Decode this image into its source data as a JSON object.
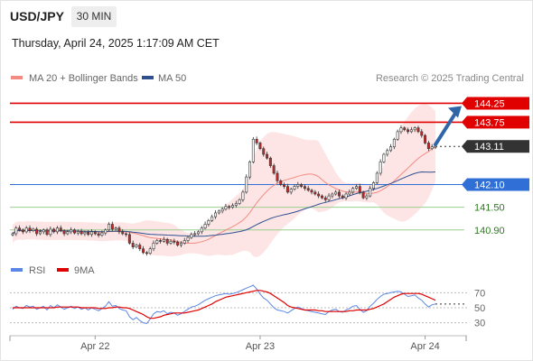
{
  "header": {
    "symbol": "USD/JPY",
    "timeframe": "30 MIN",
    "datetime": "Thursday, April 24, 2025 1:17:09 AM CET"
  },
  "colors": {
    "ma20": "#f28b82",
    "ma50": "#2f4f8f",
    "bollinger_fill": "#fde2e2",
    "resistance": "#e00000",
    "pivot": "#2f6fd6",
    "support": "#9ccf8f",
    "support_text": "#2d7a1f",
    "candle_up": "#ffffff",
    "candle_down": "#c62828",
    "arrow": "#2f66a8",
    "rsi": "#5b86e5",
    "rsi_ma": "#e00000",
    "current": "#333333"
  },
  "chart_data": [
    {
      "type": "line",
      "legend": [
        "MA 20 + Bollinger Bands",
        "MA 50"
      ],
      "legend_position": "top-left",
      "watermark": "Research © 2025 Trading Central",
      "y_range": [
        140.25,
        144.5
      ],
      "x_ticks": [
        {
          "label": "Apr 22",
          "index": 24
        },
        {
          "label": "Apr 23",
          "index": 72
        },
        {
          "label": "Apr 24",
          "index": 120
        }
      ],
      "levels": [
        {
          "value": 144.25,
          "label": "144.25",
          "kind": "resistance"
        },
        {
          "value": 143.75,
          "label": "143.75",
          "kind": "resistance"
        },
        {
          "value": 143.11,
          "label": "143.11",
          "kind": "current"
        },
        {
          "value": 142.1,
          "label": "142.10",
          "kind": "pivot"
        },
        {
          "value": 141.5,
          "label": "141.50",
          "kind": "support"
        },
        {
          "value": 140.9,
          "label": "140.90",
          "kind": "support"
        }
      ],
      "arrow": {
        "from_value": 143.11,
        "to_value": 144.25
      },
      "price_close": [
        140.8,
        140.95,
        140.9,
        140.85,
        140.95,
        140.88,
        140.92,
        140.8,
        140.85,
        140.9,
        140.78,
        140.92,
        140.85,
        140.95,
        140.88,
        140.8,
        140.85,
        140.9,
        140.82,
        140.86,
        140.8,
        140.84,
        140.78,
        140.85,
        140.8,
        140.76,
        140.82,
        140.9,
        141.05,
        140.92,
        140.95,
        140.85,
        140.8,
        140.78,
        140.55,
        140.45,
        140.5,
        140.4,
        140.3,
        140.28,
        140.4,
        140.55,
        140.62,
        140.6,
        140.65,
        140.55,
        140.6,
        140.58,
        140.5,
        140.55,
        140.62,
        140.7,
        140.78,
        140.8,
        140.85,
        140.95,
        141.05,
        141.15,
        141.25,
        141.35,
        141.4,
        141.45,
        141.52,
        141.5,
        141.55,
        141.6,
        141.7,
        141.9,
        142.3,
        142.7,
        143.3,
        143.2,
        143.05,
        142.9,
        142.8,
        142.6,
        142.4,
        142.2,
        142.1,
        142.05,
        141.9,
        141.98,
        142.05,
        142.1,
        142.05,
        142.0,
        141.95,
        141.9,
        141.85,
        141.8,
        141.75,
        141.7,
        141.8,
        141.85,
        141.9,
        141.8,
        141.75,
        141.85,
        141.9,
        142.0,
        142.05,
        141.9,
        141.75,
        141.8,
        142.0,
        142.15,
        142.4,
        142.7,
        142.9,
        143.0,
        143.1,
        143.3,
        143.5,
        143.6,
        143.55,
        143.5,
        143.55,
        143.6,
        143.5,
        143.4,
        143.2,
        143.05,
        143.1,
        143.11
      ]
    },
    {
      "type": "line",
      "legend": [
        "RSI",
        "9MA"
      ],
      "legend_position": "top-left",
      "y_range": [
        20,
        80
      ],
      "y_ticks": [
        70,
        50,
        30
      ],
      "series": [
        {
          "name": "RSI",
          "values": [
            48,
            52,
            50,
            49,
            53,
            51,
            52,
            48,
            50,
            52,
            47,
            53,
            50,
            54,
            51,
            48,
            50,
            52,
            49,
            51,
            48,
            50,
            47,
            50,
            48,
            46,
            49,
            52,
            58,
            52,
            53,
            49,
            47,
            46,
            38,
            34,
            37,
            33,
            30,
            29,
            35,
            42,
            45,
            44,
            46,
            42,
            44,
            43,
            40,
            42,
            45,
            48,
            51,
            52,
            54,
            57,
            60,
            62,
            64,
            66,
            67,
            68,
            69,
            68,
            69,
            70,
            72,
            74,
            76,
            78,
            80,
            75,
            68,
            63,
            60,
            55,
            50,
            47,
            46,
            45,
            43,
            46,
            49,
            51,
            49,
            47,
            46,
            45,
            44,
            43,
            42,
            41,
            45,
            47,
            48,
            45,
            44,
            47,
            49,
            52,
            53,
            48,
            44,
            46,
            52,
            56,
            61,
            65,
            68,
            69,
            70,
            71,
            72,
            71,
            68,
            65,
            66,
            67,
            63,
            60,
            55,
            51,
            54,
            55
          ]
        },
        {
          "name": "9MA",
          "values": [
            50,
            50,
            50,
            50,
            50,
            50,
            50,
            50,
            50,
            50,
            50,
            50,
            50,
            51,
            51,
            51,
            51,
            51,
            51,
            51,
            50,
            50,
            50,
            50,
            50,
            49,
            49,
            49,
            50,
            50,
            51,
            51,
            50,
            50,
            49,
            47,
            45,
            43,
            41,
            38,
            36,
            36,
            37,
            38,
            40,
            41,
            42,
            43,
            43,
            43,
            43,
            44,
            45,
            46,
            47,
            49,
            51,
            53,
            55,
            58,
            60,
            62,
            64,
            65,
            66,
            67,
            68,
            69,
            70,
            71,
            72,
            73,
            73,
            72,
            71,
            69,
            66,
            63,
            60,
            57,
            53,
            51,
            50,
            49,
            48,
            47,
            47,
            47,
            47,
            46,
            46,
            45,
            45,
            45,
            45,
            45,
            45,
            45,
            46,
            46,
            47,
            47,
            47,
            47,
            48,
            49,
            51,
            53,
            55,
            58,
            61,
            64,
            66,
            68,
            69,
            69,
            69,
            69,
            69,
            68,
            66,
            64,
            62,
            60
          ]
        }
      ]
    }
  ]
}
